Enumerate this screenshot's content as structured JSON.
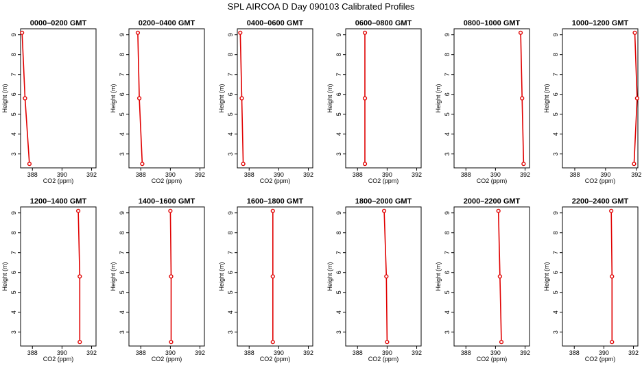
{
  "page_title": "SPL AIRCOA D  Day 090103  Calibrated Profiles",
  "style": {
    "line_color": "#e00000",
    "marker_color": "#e00000",
    "axis_color": "#000000"
  },
  "chart_data": [
    {
      "type": "line",
      "title": "0000–0200 GMT",
      "xlabel": "CO2 (ppm)",
      "ylabel": "Height (m)",
      "xlim": [
        387.2,
        392.3
      ],
      "ylim": [
        2.3,
        9.3
      ],
      "xticks": [
        388,
        390,
        392
      ],
      "xtick_labels": [
        "388",
        "390",
        "392"
      ],
      "yticks": [
        3,
        4,
        5,
        6,
        7,
        8,
        9
      ],
      "ytick_labels": [
        "3",
        "4",
        "5",
        "6",
        "7",
        "8",
        "9"
      ],
      "series": [
        {
          "x": [
            387.3,
            387.5,
            387.8
          ],
          "y": [
            9.1,
            5.8,
            2.5
          ]
        }
      ]
    },
    {
      "type": "line",
      "title": "0200–0400 GMT",
      "xlabel": "CO2 (ppm)",
      "ylabel": "Height (m)",
      "xlim": [
        387.2,
        392.3
      ],
      "ylim": [
        2.3,
        9.3
      ],
      "xticks": [
        388,
        390,
        392
      ],
      "xtick_labels": [
        "388",
        "390",
        "392"
      ],
      "yticks": [
        3,
        4,
        5,
        6,
        7,
        8,
        9
      ],
      "ytick_labels": [
        "3",
        "4",
        "5",
        "6",
        "7",
        "8",
        "9"
      ],
      "series": [
        {
          "x": [
            387.8,
            387.9,
            388.1
          ],
          "y": [
            9.1,
            5.8,
            2.5
          ]
        }
      ]
    },
    {
      "type": "line",
      "title": "0400–0600 GMT",
      "xlabel": "CO2 (ppm)",
      "ylabel": "Height (m)",
      "xlim": [
        387.2,
        392.3
      ],
      "ylim": [
        2.3,
        9.3
      ],
      "xticks": [
        388,
        390,
        392
      ],
      "xtick_labels": [
        "388",
        "390",
        "392"
      ],
      "yticks": [
        3,
        4,
        5,
        6,
        7,
        8,
        9
      ],
      "ytick_labels": [
        "3",
        "4",
        "5",
        "6",
        "7",
        "8",
        "9"
      ],
      "series": [
        {
          "x": [
            387.4,
            387.5,
            387.6
          ],
          "y": [
            9.1,
            5.8,
            2.5
          ]
        }
      ]
    },
    {
      "type": "line",
      "title": "0600–0800 GMT",
      "xlabel": "CO2 (ppm)",
      "ylabel": "Height (m)",
      "xlim": [
        387.2,
        392.3
      ],
      "ylim": [
        2.3,
        9.3
      ],
      "xticks": [
        388,
        390,
        392
      ],
      "xtick_labels": [
        "388",
        "390",
        "392"
      ],
      "yticks": [
        3,
        4,
        5,
        6,
        7,
        8,
        9
      ],
      "ytick_labels": [
        "3",
        "4",
        "5",
        "6",
        "7",
        "8",
        "9"
      ],
      "series": [
        {
          "x": [
            388.5,
            388.5,
            388.5
          ],
          "y": [
            9.1,
            5.8,
            2.5
          ]
        }
      ]
    },
    {
      "type": "line",
      "title": "0800–1000 GMT",
      "xlabel": "CO2 (ppm)",
      "ylabel": "Height (m)",
      "xlim": [
        387.2,
        392.3
      ],
      "ylim": [
        2.3,
        9.3
      ],
      "xticks": [
        388,
        390,
        392
      ],
      "xtick_labels": [
        "388",
        "390",
        "392"
      ],
      "yticks": [
        3,
        4,
        5,
        6,
        7,
        8,
        9
      ],
      "ytick_labels": [
        "3",
        "4",
        "5",
        "6",
        "7",
        "8",
        "9"
      ],
      "series": [
        {
          "x": [
            391.7,
            391.8,
            391.9
          ],
          "y": [
            9.1,
            5.8,
            2.5
          ]
        }
      ]
    },
    {
      "type": "line",
      "title": "1000–1200 GMT",
      "xlabel": "CO2 (ppm)",
      "ylabel": "Height (m)",
      "xlim": [
        387.2,
        392.1
      ],
      "ylim": [
        2.3,
        9.3
      ],
      "xticks": [
        388,
        390,
        392
      ],
      "xtick_labels": [
        "388",
        "390",
        "392"
      ],
      "yticks": [
        3,
        4,
        5,
        6,
        7,
        8,
        9
      ],
      "ytick_labels": [
        "3",
        "4",
        "5",
        "6",
        "7",
        "8",
        "9"
      ],
      "series": [
        {
          "x": [
            391.9,
            392.05,
            391.85
          ],
          "y": [
            9.1,
            5.8,
            2.5
          ]
        }
      ]
    },
    {
      "type": "line",
      "title": "1200–1400 GMT",
      "xlabel": "CO2 (ppm)",
      "ylabel": "Height (m)",
      "xlim": [
        387.2,
        392.3
      ],
      "ylim": [
        2.3,
        9.3
      ],
      "xticks": [
        388,
        390,
        392
      ],
      "xtick_labels": [
        "388",
        "390",
        "392"
      ],
      "yticks": [
        3,
        4,
        5,
        6,
        7,
        8,
        9
      ],
      "ytick_labels": [
        "3",
        "4",
        "5",
        "6",
        "7",
        "8",
        "9"
      ],
      "series": [
        {
          "x": [
            391.1,
            391.2,
            391.2
          ],
          "y": [
            9.1,
            5.8,
            2.5
          ]
        }
      ]
    },
    {
      "type": "line",
      "title": "1400–1600 GMT",
      "xlabel": "CO2 (ppm)",
      "ylabel": "Height (m)",
      "xlim": [
        387.2,
        392.3
      ],
      "ylim": [
        2.3,
        9.3
      ],
      "xticks": [
        388,
        390,
        392
      ],
      "xtick_labels": [
        "388",
        "390",
        "392"
      ],
      "yticks": [
        3,
        4,
        5,
        6,
        7,
        8,
        9
      ],
      "ytick_labels": [
        "3",
        "4",
        "5",
        "6",
        "7",
        "8",
        "9"
      ],
      "series": [
        {
          "x": [
            390.0,
            390.05,
            390.05
          ],
          "y": [
            9.1,
            5.8,
            2.5
          ]
        }
      ]
    },
    {
      "type": "line",
      "title": "1600–1800 GMT",
      "xlabel": "CO2 (ppm)",
      "ylabel": "Height (m)",
      "xlim": [
        387.2,
        392.3
      ],
      "ylim": [
        2.3,
        9.3
      ],
      "xticks": [
        388,
        390,
        392
      ],
      "xtick_labels": [
        "388",
        "390",
        "392"
      ],
      "yticks": [
        3,
        4,
        5,
        6,
        7,
        8,
        9
      ],
      "ytick_labels": [
        "3",
        "4",
        "5",
        "6",
        "7",
        "8",
        "9"
      ],
      "series": [
        {
          "x": [
            389.6,
            389.6,
            389.6
          ],
          "y": [
            9.1,
            5.8,
            2.5
          ]
        }
      ]
    },
    {
      "type": "line",
      "title": "1800–2000 GMT",
      "xlabel": "CO2 (ppm)",
      "ylabel": "Height (m)",
      "xlim": [
        387.2,
        392.3
      ],
      "ylim": [
        2.3,
        9.3
      ],
      "xticks": [
        388,
        390,
        392
      ],
      "xtick_labels": [
        "388",
        "390",
        "392"
      ],
      "yticks": [
        3,
        4,
        5,
        6,
        7,
        8,
        9
      ],
      "ytick_labels": [
        "3",
        "4",
        "5",
        "6",
        "7",
        "8",
        "9"
      ],
      "series": [
        {
          "x": [
            389.8,
            389.95,
            390.0
          ],
          "y": [
            9.1,
            5.8,
            2.5
          ]
        }
      ]
    },
    {
      "type": "line",
      "title": "2000–2200 GMT",
      "xlabel": "CO2 (ppm)",
      "ylabel": "Height (m)",
      "xlim": [
        387.2,
        392.3
      ],
      "ylim": [
        2.3,
        9.3
      ],
      "xticks": [
        388,
        390,
        392
      ],
      "xtick_labels": [
        "388",
        "390",
        "392"
      ],
      "yticks": [
        3,
        4,
        5,
        6,
        7,
        8,
        9
      ],
      "ytick_labels": [
        "3",
        "4",
        "5",
        "6",
        "7",
        "8",
        "9"
      ],
      "series": [
        {
          "x": [
            390.2,
            390.3,
            390.4
          ],
          "y": [
            9.1,
            5.8,
            2.5
          ]
        }
      ]
    },
    {
      "type": "line",
      "title": "2200–2400 GMT",
      "xlabel": "CO2 (ppm)",
      "ylabel": "Height (m)",
      "xlim": [
        387.2,
        392.3
      ],
      "ylim": [
        2.3,
        9.3
      ],
      "xticks": [
        388,
        390,
        392
      ],
      "xtick_labels": [
        "388",
        "390",
        "392"
      ],
      "yticks": [
        3,
        4,
        5,
        6,
        7,
        8,
        9
      ],
      "ytick_labels": [
        "3",
        "4",
        "5",
        "6",
        "7",
        "8",
        "9"
      ],
      "series": [
        {
          "x": [
            390.5,
            390.55,
            390.55
          ],
          "y": [
            9.1,
            5.8,
            2.5
          ]
        }
      ]
    }
  ]
}
